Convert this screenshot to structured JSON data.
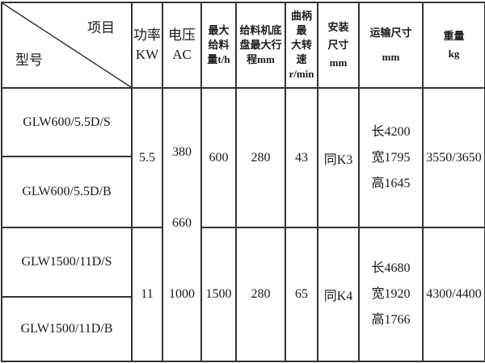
{
  "header": {
    "item_label": "项目",
    "model_label": "型号",
    "columns": [
      "功率\nKW",
      "电压\nAC",
      "最大\n给料\n量t/h",
      "给料机底\n盘最大行\n程mm",
      "曲柄最\n大转速\nr/min",
      "安装\n尺寸\nmm",
      "运输尺寸\nmm",
      "重量\nkg"
    ]
  },
  "voltage": [
    "380",
    "660",
    "1000"
  ],
  "groups": [
    {
      "models": [
        "GLW600/5.5D/S",
        "GLW600/5.5D/B"
      ],
      "power": "5.5",
      "max_feed": "600",
      "max_stroke": "280",
      "crank_speed": "43",
      "install_size": "同K3",
      "transport_size": [
        "长4200",
        "宽1795",
        "高1645"
      ],
      "weight": "3550/3650"
    },
    {
      "models": [
        "GLW1500/11D/S",
        "GLW1500/11D/B"
      ],
      "power": "11",
      "max_feed": "1500",
      "max_stroke": "280",
      "crank_speed": "65",
      "install_size": "同K4",
      "transport_size": [
        "长4680",
        "宽1920",
        "高1766"
      ],
      "weight": "4300/4400"
    }
  ]
}
